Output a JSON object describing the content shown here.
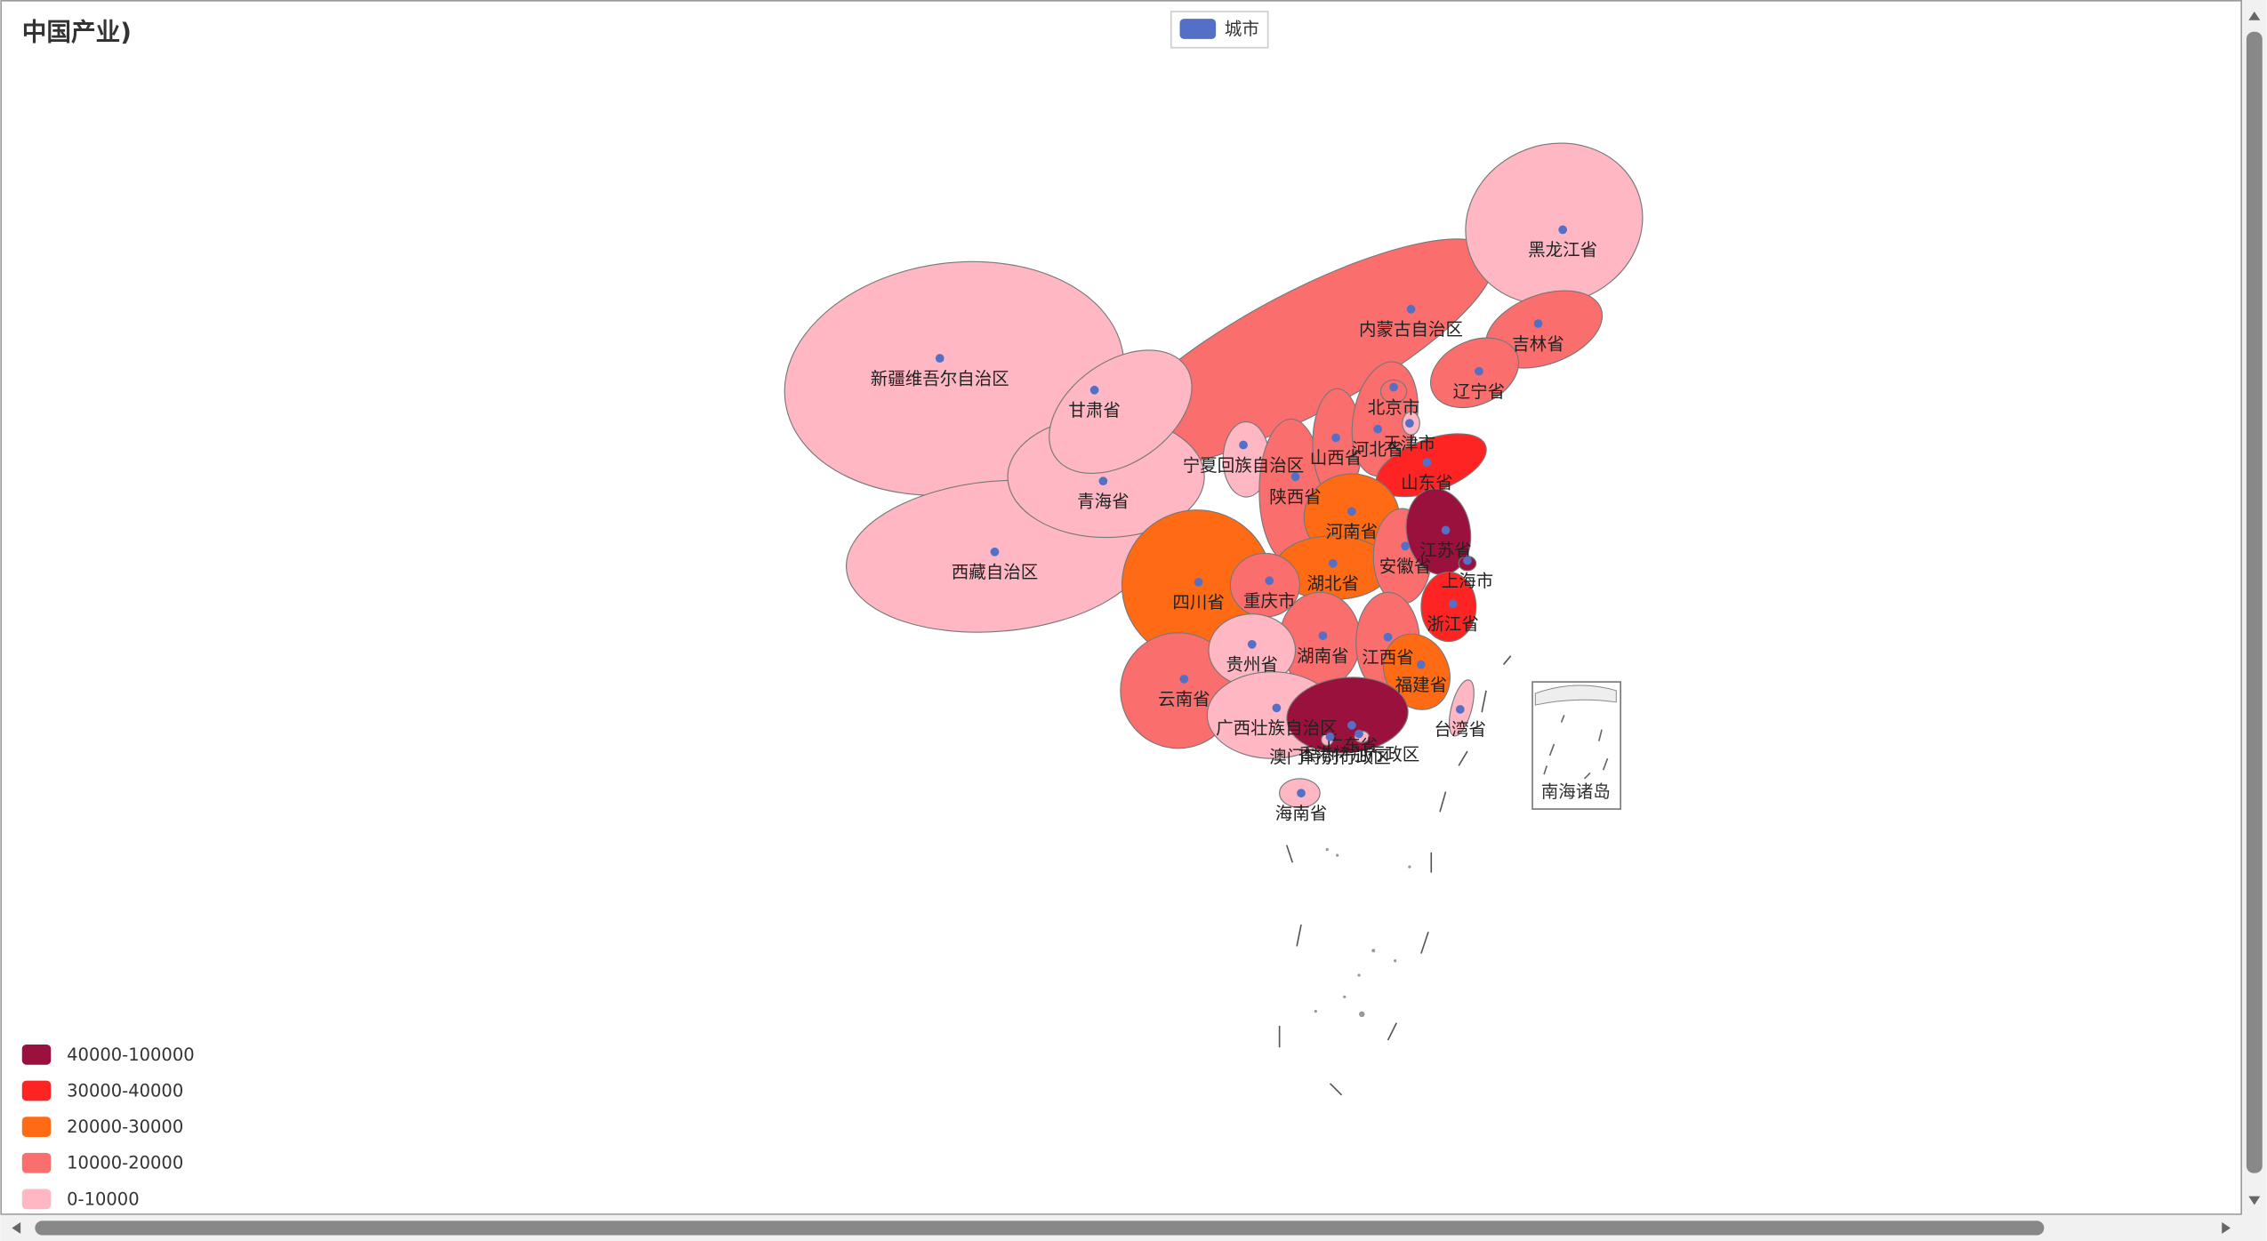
{
  "title": "中国产业)",
  "legend": {
    "name": "城市",
    "color": "#5470c6"
  },
  "visual_map": {
    "pieces": [
      {
        "label": "40000-100000",
        "color": "#99113c"
      },
      {
        "label": "30000-40000",
        "color": "#ff2424"
      },
      {
        "label": "20000-30000",
        "color": "#ff6b15"
      },
      {
        "label": "10000-20000",
        "color": "#fa6e6e"
      },
      {
        "label": "0-10000",
        "color": "#ffb7c3"
      }
    ]
  },
  "regions": [
    {
      "name": "新疆维吾尔自治区",
      "color": "#ffb7c3"
    },
    {
      "name": "西藏自治区",
      "color": "#ffb7c3"
    },
    {
      "name": "内蒙古自治区",
      "color": "#fa6e6e"
    },
    {
      "name": "青海省",
      "color": "#ffb7c3"
    },
    {
      "name": "甘肃省",
      "color": "#ffb7c3"
    },
    {
      "name": "黑龙江省",
      "color": "#ffb7c3"
    },
    {
      "name": "吉林省",
      "color": "#fa6e6e"
    },
    {
      "name": "辽宁省",
      "color": "#fa6e6e"
    },
    {
      "name": "四川省",
      "color": "#ff6b15"
    },
    {
      "name": "云南省",
      "color": "#fa6e6e"
    },
    {
      "name": "宁夏回族自治区",
      "color": "#ffb7c3"
    },
    {
      "name": "陕西省",
      "color": "#fa6e6e"
    },
    {
      "name": "山西省",
      "color": "#fa6e6e"
    },
    {
      "name": "河北省",
      "color": "#fa6e6e"
    },
    {
      "name": "北京市",
      "color": "#fa6e6e"
    },
    {
      "name": "天津市",
      "color": "#ffb7c3"
    },
    {
      "name": "山东省",
      "color": "#ff2424"
    },
    {
      "name": "河南省",
      "color": "#ff6b15"
    },
    {
      "name": "湖北省",
      "color": "#ff6b15"
    },
    {
      "name": "重庆市",
      "color": "#fa6e6e"
    },
    {
      "name": "安徽省",
      "color": "#fa6e6e"
    },
    {
      "name": "江苏省",
      "color": "#99113c"
    },
    {
      "name": "上海市",
      "color": "#99113c"
    },
    {
      "name": "浙江省",
      "color": "#ff2424"
    },
    {
      "name": "湖南省",
      "color": "#fa6e6e"
    },
    {
      "name": "江西省",
      "color": "#fa6e6e"
    },
    {
      "name": "贵州省",
      "color": "#ffb7c3"
    },
    {
      "name": "福建省",
      "color": "#ff6b15"
    },
    {
      "name": "广西壮族自治区",
      "color": "#ffb7c3"
    },
    {
      "name": "广东省",
      "color": "#99113c"
    },
    {
      "name": "香港特别行政区",
      "color": "#ffb7c3"
    },
    {
      "name": "澳门特别行政区",
      "color": "#ffb7c3"
    },
    {
      "name": "台湾省",
      "color": "#ffb7c3"
    },
    {
      "name": "海南省",
      "color": "#ffb7c3"
    }
  ],
  "inset_label": "南海诸岛"
}
